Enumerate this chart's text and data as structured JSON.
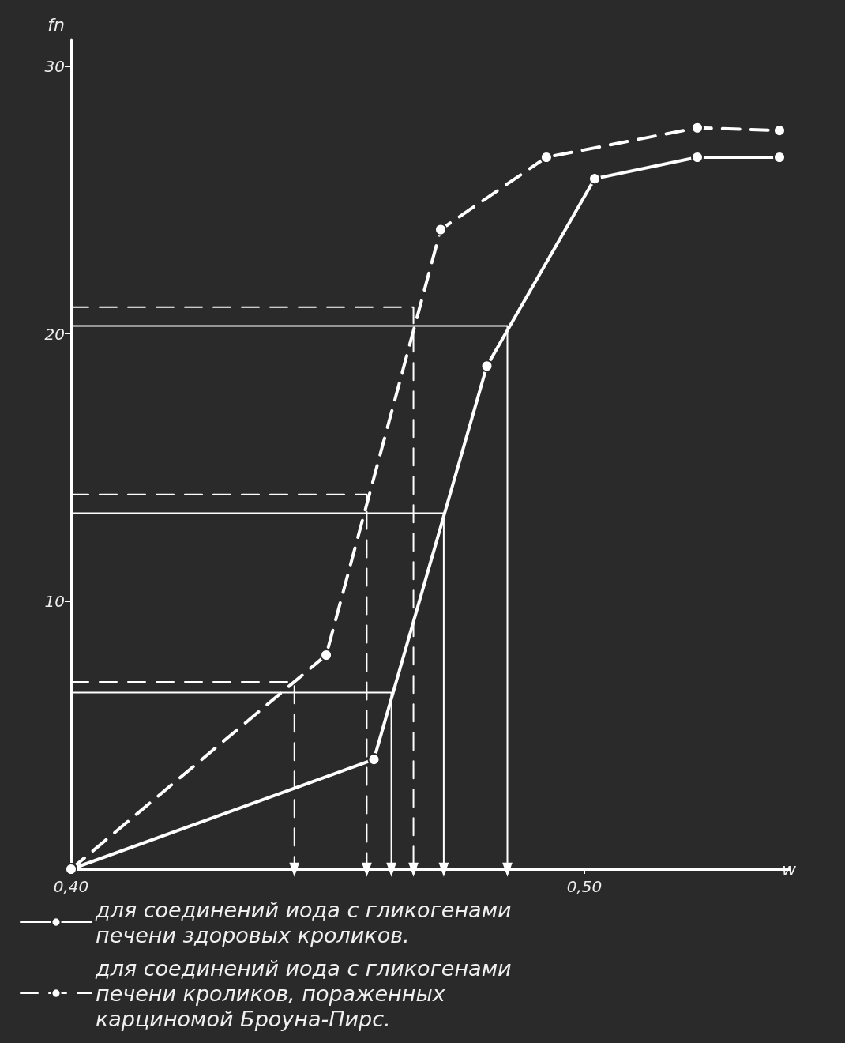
{
  "chart_data": {
    "type": "line",
    "xlabel": "w",
    "ylabel": "fn",
    "xlim": [
      0.4,
      0.54
    ],
    "xticks": [
      {
        "value": 0.4,
        "label": "0,40"
      },
      {
        "value": 0.5,
        "label": "0,50"
      }
    ],
    "ylim": [
      0,
      31
    ],
    "yticks": [
      {
        "value": 10,
        "label": "10"
      },
      {
        "value": 20,
        "label": "20"
      },
      {
        "value": 30,
        "label": "30"
      }
    ],
    "grid": false,
    "legend": "bottom",
    "marker": "circle",
    "series": [
      {
        "name": "для соединений иода с гликогенами печени здоровых кроликов.",
        "color": "#ffffff",
        "line_style": "solid",
        "x": [
          0.4,
          0.459,
          0.481,
          0.502,
          0.522,
          0.538
        ],
        "values": [
          0,
          4.1,
          18.8,
          25.8,
          26.6,
          26.6
        ]
      },
      {
        "name": "для соединений иода с гликогенами печени кроликов, пораженных карциномой Броуна-Пирс.",
        "color": "#ffffff",
        "line_style": "dashed",
        "x": [
          0.4,
          0.4497,
          0.472,
          0.4926,
          0.522,
          0.538
        ],
        "values": [
          0,
          8.0,
          23.9,
          26.6,
          27.7,
          27.6
        ]
      },
      {
        "color": "#ffffff",
        "line_style": "solid",
        "marker": "none",
        "x": [
          0.4,
          0.485,
          0.485
        ],
        "values": [
          20.3,
          20.3,
          0
        ]
      },
      {
        "color": "#ffffff",
        "line_style": "solid",
        "marker": "none",
        "x": [
          0.4,
          0.4726,
          0.4726
        ],
        "values": [
          13.3,
          13.3,
          0
        ]
      },
      {
        "color": "#ffffff",
        "line_style": "solid",
        "marker": "none",
        "x": [
          0.4,
          0.4624,
          0.4624
        ],
        "values": [
          6.6,
          6.6,
          0
        ]
      },
      {
        "color": "#ffffff",
        "line_style": "dashed",
        "marker": "none",
        "x": [
          0.4,
          0.4667,
          0.4667
        ],
        "values": [
          21.0,
          21.0,
          0
        ]
      },
      {
        "color": "#ffffff",
        "line_style": "dashed",
        "marker": "none",
        "x": [
          0.4,
          0.4576,
          0.4576
        ],
        "values": [
          14.0,
          14.0,
          0
        ]
      },
      {
        "color": "#ffffff",
        "line_style": "dashed",
        "marker": "none",
        "x": [
          0.4,
          0.4435,
          0.4435
        ],
        "values": [
          7.0,
          7.0,
          0
        ]
      }
    ]
  }
}
